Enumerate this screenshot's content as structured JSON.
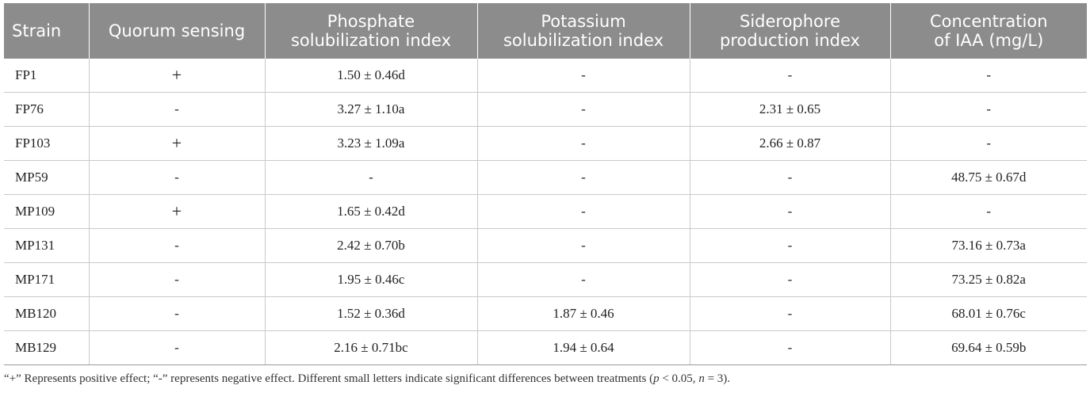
{
  "table": {
    "headers": [
      "Strain",
      "Quorum sensing",
      "Phosphate solubilization index",
      "Potassium solubilization index",
      "Siderophore production index",
      "Concentration of IAA (mg/L)"
    ],
    "header_lines": [
      [
        "Strain"
      ],
      [
        "Quorum sensing"
      ],
      [
        "Phosphate",
        "solubilization index"
      ],
      [
        "Potassium",
        "solubilization index"
      ],
      [
        "Siderophore",
        "production index"
      ],
      [
        "Concentration",
        "of IAA (mg/L)"
      ]
    ],
    "rows": [
      [
        "FP1",
        "+",
        "1.50 ± 0.46d",
        "-",
        "-",
        "-"
      ],
      [
        "FP76",
        "-",
        "3.27 ± 1.10a",
        "-",
        "2.31 ± 0.65",
        "-"
      ],
      [
        "FP103",
        "+",
        "3.23 ± 1.09a",
        "-",
        "2.66 ± 0.87",
        "-"
      ],
      [
        "MP59",
        "-",
        "-",
        "-",
        "-",
        "48.75 ± 0.67d"
      ],
      [
        "MP109",
        "+",
        "1.65 ± 0.42d",
        "-",
        "-",
        "-"
      ],
      [
        "MP131",
        "-",
        "2.42 ± 0.70b",
        "-",
        "-",
        "73.16 ± 0.73a"
      ],
      [
        "MP171",
        "-",
        "1.95 ± 0.46c",
        "-",
        "-",
        "73.25 ± 0.82a"
      ],
      [
        "MB120",
        "-",
        "1.52 ± 0.36d",
        "1.87 ± 0.46",
        "-",
        "68.01 ± 0.76c"
      ],
      [
        "MB129",
        "-",
        "2.16 ± 0.71bc",
        "1.94 ± 0.64",
        "-",
        "69.64 ± 0.59b"
      ]
    ]
  },
  "footnote": {
    "part1": "“+” Represents positive effect; “-” represents negative effect. Different small letters indicate significant differences between treatments (",
    "p": "p",
    "part2": " < 0.05, ",
    "n": "n",
    "part3": " = 3)."
  },
  "colors": {
    "header_bg": "#8c8c8c",
    "header_text": "#ffffff",
    "grid": "#c9c9c9"
  }
}
